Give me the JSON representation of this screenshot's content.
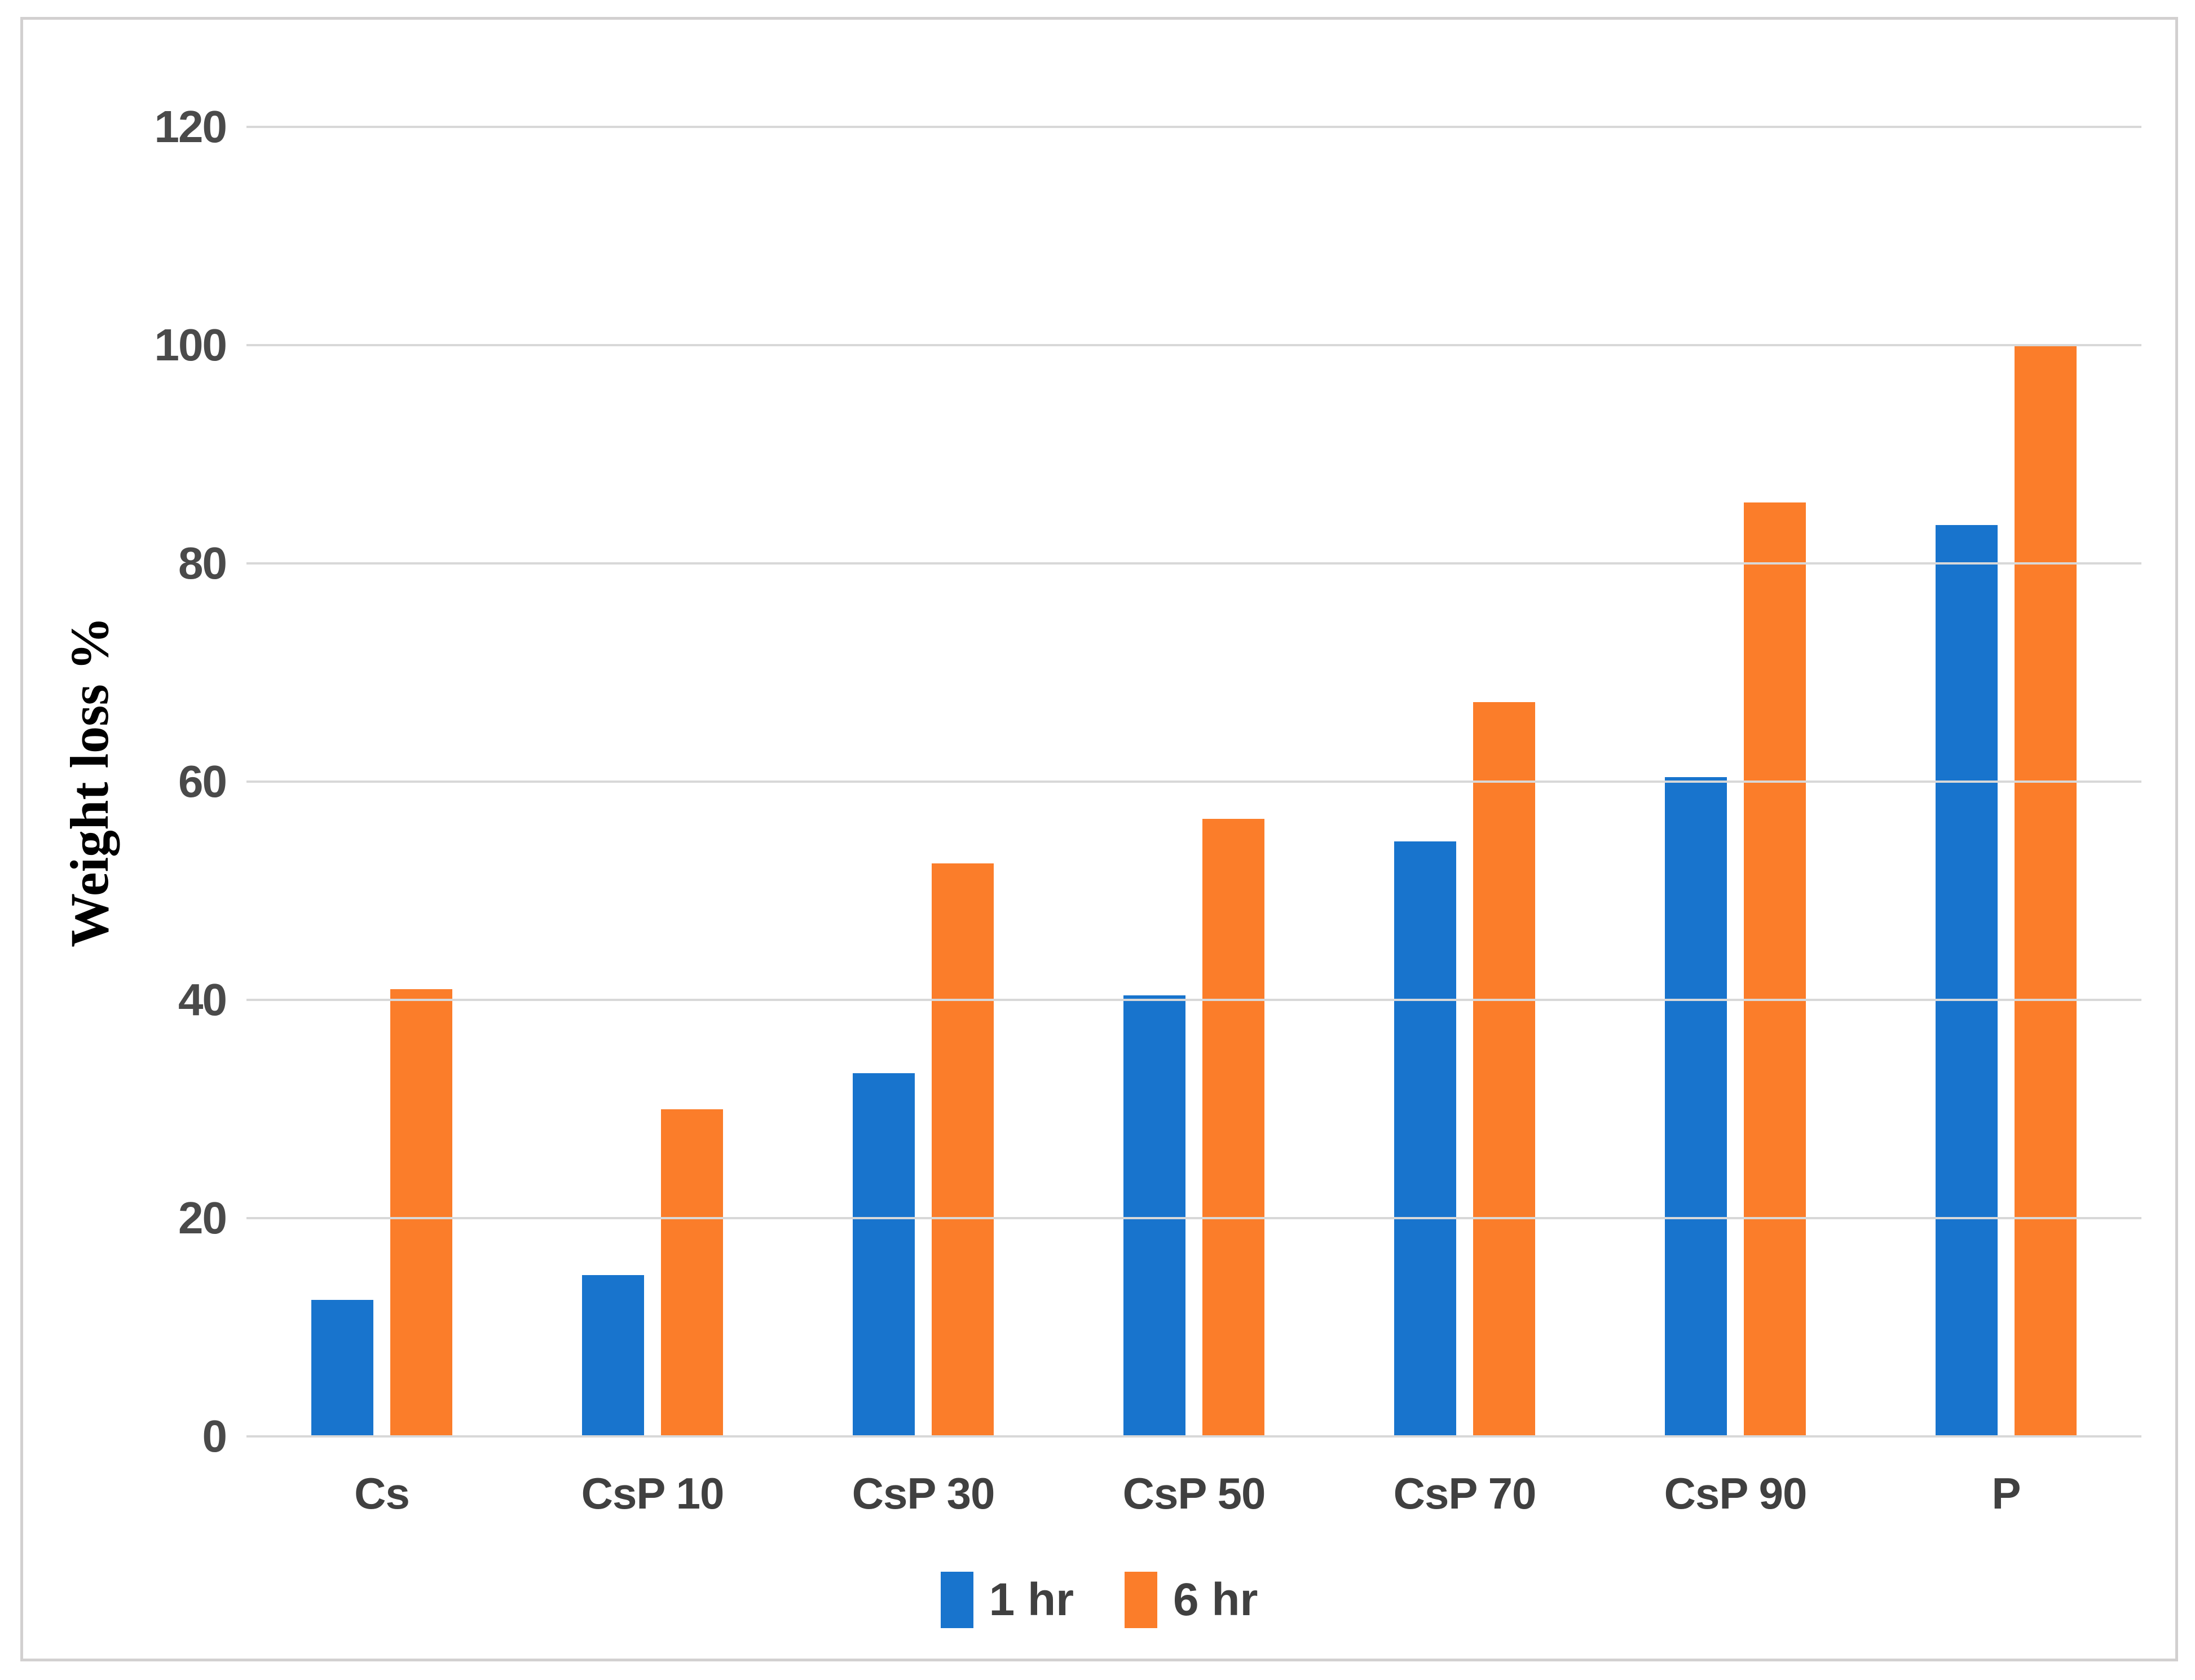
{
  "chart_data": {
    "type": "bar",
    "title": "",
    "xlabel": "",
    "ylabel": "Weight loss %",
    "ylim": [
      0,
      120
    ],
    "ytick_step": 20,
    "grid": "horizontal",
    "legend_position": "bottom",
    "categories": [
      "Cs",
      "CsP 10",
      "CsP 30",
      "CsP 50",
      "CsP 70",
      "CsP 90",
      "P"
    ],
    "series": [
      {
        "name": "1 hr",
        "color": "#1874cd",
        "values": [
          12.5,
          14.8,
          33.3,
          40.4,
          54.5,
          60.4,
          83.5
        ]
      },
      {
        "name": "6 hr",
        "color": "#fb7d2a",
        "values": [
          41.0,
          30.0,
          52.5,
          56.6,
          67.3,
          85.6,
          100.0
        ]
      }
    ]
  },
  "colors": {
    "gridline": "#d8d8d8",
    "frame_border": "#d2d0d0",
    "tick_text": "#4a4a4a",
    "category_text": "#404040",
    "axis_title_text": "#000000",
    "background": "#ffffff"
  }
}
